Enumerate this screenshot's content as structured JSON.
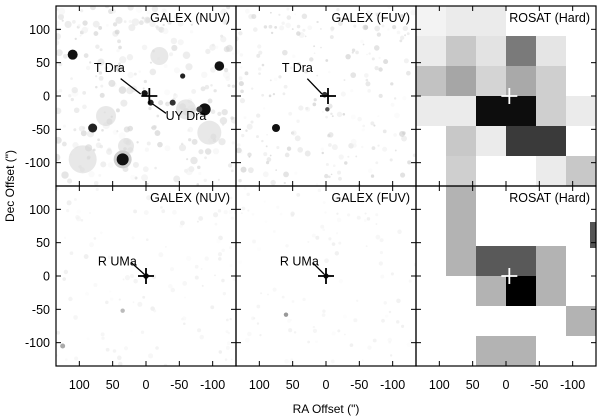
{
  "axes": {
    "x_label": "RA Offset (\")",
    "y_label": "Dec Offset (\")",
    "x_ticks": [
      "100",
      "50",
      "0",
      "-50",
      "-100"
    ],
    "y_ticks_top": [
      "100",
      "50",
      "0",
      "-50",
      "-100"
    ],
    "y_ticks_bottom": [
      "100",
      "50",
      "0",
      "-50",
      "-100"
    ],
    "x_range": [
      135,
      -135
    ],
    "y_range": [
      -135,
      135
    ]
  },
  "panels": [
    {
      "title": "GALEX (NUV)",
      "labels": [
        "T Dra",
        "UY Dra"
      ],
      "row": "top",
      "kind": "galex-nuv"
    },
    {
      "title": "GALEX (FUV)",
      "labels": [
        "T Dra"
      ],
      "row": "top",
      "kind": "galex-fuv"
    },
    {
      "title": "ROSAT (Hard)",
      "labels": [],
      "row": "top",
      "kind": "rosat"
    },
    {
      "title": "GALEX (NUV)",
      "labels": [
        "R UMa"
      ],
      "row": "bottom",
      "kind": "galex-nuv"
    },
    {
      "title": "GALEX (FUV)",
      "labels": [
        "R UMa"
      ],
      "row": "bottom",
      "kind": "galex-fuv"
    },
    {
      "title": "ROSAT (Hard)",
      "labels": [],
      "row": "bottom",
      "kind": "rosat"
    }
  ],
  "colors": {
    "frame": "#000000",
    "crosshair_dark": "#000000",
    "crosshair_light": "#ffffff"
  }
}
